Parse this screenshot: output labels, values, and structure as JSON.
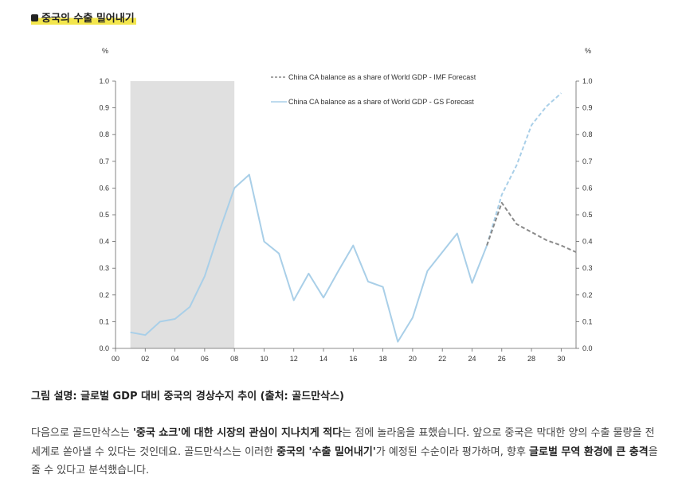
{
  "heading": "중국의 수출 밀어내기",
  "chart_data": {
    "type": "line",
    "y_unit_left": "%",
    "y_unit_right": "%",
    "ylim": [
      0,
      1.0
    ],
    "yticks": [
      "0.0",
      "0.1",
      "0.2",
      "0.3",
      "0.4",
      "0.5",
      "0.6",
      "0.7",
      "0.8",
      "0.9",
      "1.0"
    ],
    "xticks": [
      "00",
      "02",
      "04",
      "06",
      "08",
      "10",
      "12",
      "14",
      "16",
      "18",
      "20",
      "22",
      "24",
      "26",
      "28",
      "30"
    ],
    "xlim": [
      0,
      31
    ],
    "shaded_period": [
      1,
      8
    ],
    "legend": [
      {
        "label": "China CA balance as a share of World GDP - IMF Forecast",
        "style": "dashed",
        "color": "#8a8a8a"
      },
      {
        "label": "China CA balance as a share of World GDP - GS Forecast",
        "style": "solid",
        "color": "#a9cfe8"
      }
    ],
    "series": [
      {
        "name": "China CA balance as a share of World GDP - GS Forecast",
        "color": "#a9cfe8",
        "points": [
          [
            1,
            0.06
          ],
          [
            2,
            0.05
          ],
          [
            3,
            0.1
          ],
          [
            4,
            0.11
          ],
          [
            5,
            0.155
          ],
          [
            6,
            0.27
          ],
          [
            7,
            0.44
          ],
          [
            8,
            0.6
          ],
          [
            9,
            0.65
          ],
          [
            10,
            0.4
          ],
          [
            11,
            0.355
          ],
          [
            12,
            0.18
          ],
          [
            13,
            0.28
          ],
          [
            14,
            0.19
          ],
          [
            15,
            0.29
          ],
          [
            16,
            0.385
          ],
          [
            17,
            0.25
          ],
          [
            18,
            0.23
          ],
          [
            19,
            0.025
          ],
          [
            20,
            0.115
          ],
          [
            21,
            0.29
          ],
          [
            22,
            0.36
          ],
          [
            23,
            0.43
          ],
          [
            24,
            0.245
          ],
          [
            25,
            0.385
          ]
        ]
      },
      {
        "name": "GS Forecast (projection)",
        "color": "#a9cfe8",
        "dashed": true,
        "points": [
          [
            25,
            0.385
          ],
          [
            26,
            0.575
          ],
          [
            27,
            0.685
          ],
          [
            28,
            0.835
          ],
          [
            29,
            0.905
          ],
          [
            30,
            0.955
          ]
        ]
      },
      {
        "name": "China CA balance as a share of World GDP - IMF Forecast",
        "color": "#8a8a8a",
        "dashed": true,
        "points": [
          [
            25,
            0.385
          ],
          [
            26,
            0.545
          ],
          [
            27,
            0.465
          ],
          [
            28,
            0.435
          ],
          [
            29,
            0.405
          ],
          [
            30,
            0.385
          ],
          [
            31,
            0.36
          ]
        ]
      }
    ]
  },
  "caption": "그림 설명: 글로벌 GDP 대비 중국의 경상수지 추이 (출처: 골드만삭스)",
  "paragraph": [
    {
      "t": "다음으로 골드만삭스는 ",
      "b": false
    },
    {
      "t": "'중국 쇼크'에 대한 시장의 관심이 지나치게 적다",
      "b": true
    },
    {
      "t": "는 점에 놀라움을 표했습니다. 앞으로 중국은 막대한 양의 수출 물량을 전 세계로 쏟아낼 수 있다는 것인데요. 골드만삭스는 이러한 ",
      "b": false
    },
    {
      "t": "중국의 '수출 밀어내기'",
      "b": true
    },
    {
      "t": "가 예정된 수순이라 평가하며, 향후 ",
      "b": false
    },
    {
      "t": "글로벌 무역 환경에 큰 충격",
      "b": true
    },
    {
      "t": "을 줄 수 있다고 분석했습니다.",
      "b": false
    }
  ]
}
